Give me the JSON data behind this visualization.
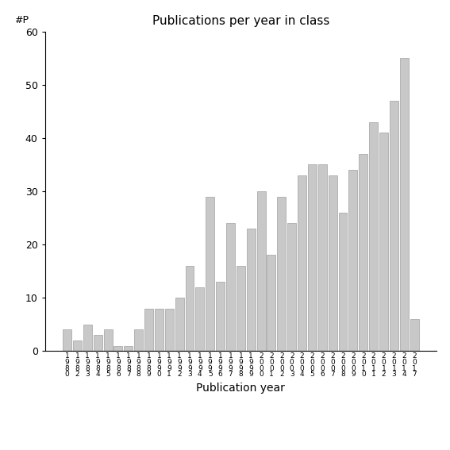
{
  "title": "Publications per year in class",
  "xlabel": "Publication year",
  "ylabel": "#P",
  "ylim": [
    0,
    60
  ],
  "yticks": [
    0,
    10,
    20,
    30,
    40,
    50,
    60
  ],
  "bar_color": "#c8c8c8",
  "bar_edgecolor": "#a0a0a0",
  "years": [
    1980,
    1982,
    1983,
    1984,
    1985,
    1986,
    1987,
    1988,
    1989,
    1990,
    1991,
    1992,
    1993,
    1994,
    1995,
    1996,
    1997,
    1998,
    1999,
    2000,
    2001,
    2002,
    2003,
    2004,
    2005,
    2006,
    2007,
    2008,
    2009,
    2010,
    2011,
    2012,
    2013,
    2014,
    2017
  ],
  "values": [
    4,
    2,
    5,
    3,
    4,
    1,
    1,
    4,
    8,
    8,
    8,
    10,
    16,
    12,
    29,
    13,
    24,
    16,
    23,
    30,
    18,
    29,
    24,
    33,
    35,
    35,
    33,
    26,
    34,
    37,
    43,
    41,
    47,
    55,
    6
  ]
}
